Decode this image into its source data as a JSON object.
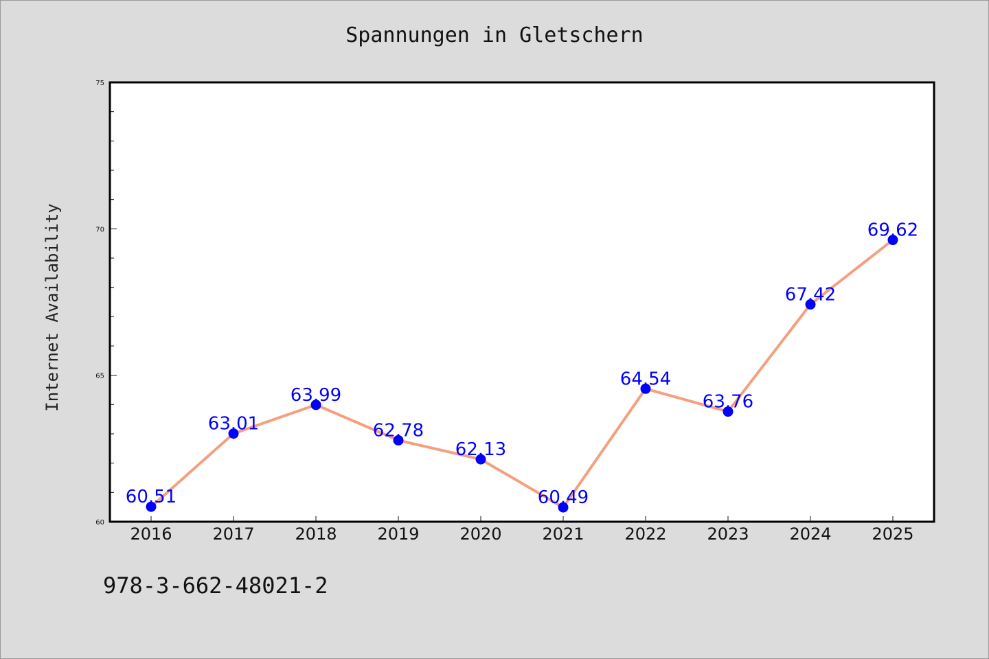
{
  "page": {
    "title": "Spannungen in Gletschern",
    "footnote": "978-3-662-48021-2"
  },
  "colors": {
    "background": "#dcdcdc",
    "plot_background": "#ffffff",
    "line": "#f4a07f",
    "marker": "#0000ff",
    "data_label": "#0000ff"
  },
  "chart_data": {
    "type": "line",
    "title": "Spannungen in Gletschern",
    "xlabel": "",
    "ylabel": "Internet Availability",
    "categories": [
      "2016",
      "2017",
      "2018",
      "2019",
      "2020",
      "2021",
      "2022",
      "2023",
      "2024",
      "2025"
    ],
    "series": [
      {
        "values": [
          60.51,
          63.01,
          63.99,
          62.78,
          62.13,
          60.49,
          64.54,
          63.76,
          67.42,
          69.62
        ]
      }
    ],
    "ylim": [
      60,
      75
    ],
    "yticks": [
      60,
      65,
      70,
      75
    ],
    "y_minor_step": 1,
    "grid": false,
    "legend": "none",
    "data_labels": [
      "60.51",
      "63.01",
      "63.99",
      "62.78",
      "62.13",
      "60.49",
      "64.54",
      "63.76",
      "67.42",
      "69.62"
    ]
  }
}
